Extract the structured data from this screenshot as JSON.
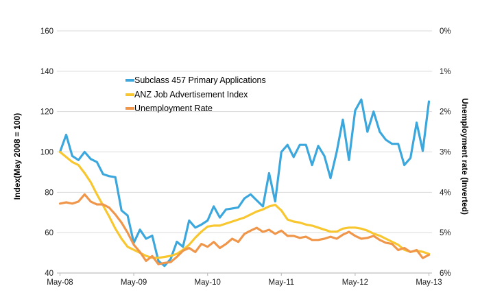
{
  "chart_data": {
    "type": "line",
    "title": "",
    "x_axis": {
      "tick_labels": [
        "May-08",
        "May-09",
        "May-10",
        "May-11",
        "May-12",
        "May-13"
      ],
      "interval": "monthly",
      "start": "May-08",
      "end": "May-13",
      "points": 61
    },
    "y_left_axis": {
      "label": "Index(May 2008 = 100)",
      "ticks": [
        160,
        140,
        120,
        100,
        80,
        60,
        40
      ],
      "range": [
        40,
        160
      ]
    },
    "y_right_axis": {
      "label": "Unemployment rate (Inverted)",
      "tick_labels": [
        "0%",
        "1%",
        "2%",
        "3%",
        "4%",
        "5%",
        "6%"
      ],
      "range": [
        0,
        6
      ],
      "inverted": true
    },
    "grid": "horizontal",
    "legend_position": "inside-top-left",
    "series": [
      {
        "name": "Subclass 457 Primary Applications",
        "color": "#3BA7DD",
        "axis": "left",
        "values": [
          100,
          108.5,
          98,
          96,
          100,
          96.5,
          95,
          89,
          88,
          87.5,
          71,
          68.5,
          55,
          61.5,
          57,
          58.5,
          46,
          43.5,
          47,
          55.5,
          53,
          66,
          62.5,
          64,
          66,
          73,
          67.5,
          71.5,
          72,
          72.5,
          77,
          79,
          76,
          73,
          89.5,
          75.5,
          100,
          103.5,
          97.5,
          103.5,
          103.5,
          93.5,
          103,
          98,
          87,
          100,
          116,
          96,
          120.5,
          126,
          110,
          120,
          110,
          106,
          104,
          104,
          93.5,
          97,
          114.5,
          100.5,
          125
        ]
      },
      {
        "name": "ANZ Job Advertisement Index",
        "color": "#F8C62E",
        "axis": "left",
        "values": [
          100,
          97.5,
          95,
          93.5,
          89.5,
          85,
          79,
          73.5,
          68,
          62,
          57,
          53,
          51.5,
          50,
          48.5,
          47.5,
          47.5,
          48,
          48.5,
          49.5,
          51.5,
          54,
          57.5,
          60.5,
          63,
          63.5,
          63.5,
          64.5,
          65.5,
          66.5,
          67.5,
          69,
          70.5,
          71.5,
          73,
          73.8,
          71,
          66.5,
          65.5,
          65,
          64,
          63.5,
          62.5,
          61.5,
          60.5,
          60.5,
          62,
          62.5,
          62.5,
          62,
          61,
          59.5,
          58.5,
          57,
          55.5,
          54,
          51.5,
          50.5,
          51,
          50.5,
          49.5
        ]
      },
      {
        "name": "Unemployment Rate",
        "color": "#F0964B",
        "axis": "right",
        "values": [
          4.28,
          4.25,
          4.28,
          4.23,
          4.05,
          4.23,
          4.3,
          4.3,
          4.38,
          4.55,
          4.75,
          5.0,
          5.3,
          5.48,
          5.7,
          5.58,
          5.78,
          5.75,
          5.73,
          5.6,
          5.45,
          5.38,
          5.48,
          5.28,
          5.35,
          5.23,
          5.38,
          5.28,
          5.15,
          5.23,
          5.03,
          4.95,
          4.88,
          4.98,
          4.93,
          5.03,
          4.95,
          5.08,
          5.08,
          5.13,
          5.1,
          5.18,
          5.18,
          5.15,
          5.1,
          5.15,
          5.05,
          4.98,
          5.08,
          5.15,
          5.13,
          5.08,
          5.18,
          5.25,
          5.28,
          5.43,
          5.38,
          5.48,
          5.43,
          5.63,
          5.55
        ]
      }
    ],
    "colors": {
      "gridline": "#D9D9D9",
      "axis_line": "#BFBFBF",
      "text": "#1a1a1a",
      "background": "#FFFFFF"
    }
  }
}
